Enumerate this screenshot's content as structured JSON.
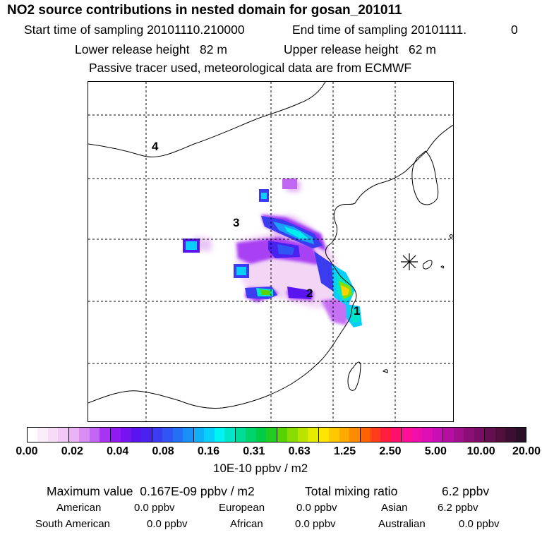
{
  "header": {
    "title": "NO2 source contributions in nested domain for gosan_201011",
    "start_label": "Start time of sampling 20101110.210000",
    "end_label": "End time of sampling 20101111.",
    "end_hour": "0",
    "lower_release": "Lower release height   82 m",
    "upper_release": "Upper release height   62 m",
    "tracer_note": "Passive tracer used, meteorological data are from ECMWF"
  },
  "map": {
    "region_labels": [
      "1",
      "2",
      "3",
      "4"
    ],
    "receptor_marker": "gosan-receptor-star"
  },
  "colorbar": {
    "tick_labels": [
      "0.00",
      "0.02",
      "0.04",
      "0.08",
      "0.16",
      "0.31",
      "0.63",
      "1.25",
      "2.50",
      "5.00",
      "10.00",
      "20.00"
    ],
    "units": "10E-10 ppbv / m2",
    "colors": [
      "#ffffff",
      "#fbeefb",
      "#f6dcf6",
      "#f1c9f6",
      "#eab3f6",
      "#d98cf4",
      "#c266f4",
      "#a833f3",
      "#8f1bf2",
      "#7614f1",
      "#5a14f0",
      "#4a22f0",
      "#3b3cf0",
      "#2f56f2",
      "#2370f4",
      "#1890f6",
      "#0fb0f8",
      "#08cff9",
      "#00f2f2",
      "#00e6c8",
      "#00dd99",
      "#00d46a",
      "#00cc44",
      "#22cc22",
      "#55d400",
      "#88dc00",
      "#b8e400",
      "#e6ec00",
      "#ffe600",
      "#ffc800",
      "#ffaa00",
      "#ff8c00",
      "#ff6400",
      "#ff3c1e",
      "#ff1e3c",
      "#ff0f6e",
      "#ff0f96",
      "#f00faa",
      "#dc0fb4",
      "#c80fb4",
      "#b40fa0",
      "#a00f8c",
      "#8c0f78",
      "#780f64",
      "#640f50",
      "#500f3c",
      "#3c0f32",
      "#2a0f28"
    ]
  },
  "summary": {
    "max_label": "Maximum value",
    "max_value": "0.167E-09 ppbv / m2",
    "total_label": "Total mixing ratio",
    "total_value": "6.2 ppbv",
    "rows": [
      [
        {
          "label": "American",
          "value": "0.0 ppbv"
        },
        {
          "label": "European",
          "value": "0.0 ppbv"
        },
        {
          "label": "Asian",
          "value": "6.2 ppbv"
        }
      ],
      [
        {
          "label": "South American",
          "value": "0.0 ppbv"
        },
        {
          "label": "African",
          "value": "0.0 ppbv"
        },
        {
          "label": "Australian",
          "value": "0.0 ppbv"
        }
      ]
    ]
  }
}
